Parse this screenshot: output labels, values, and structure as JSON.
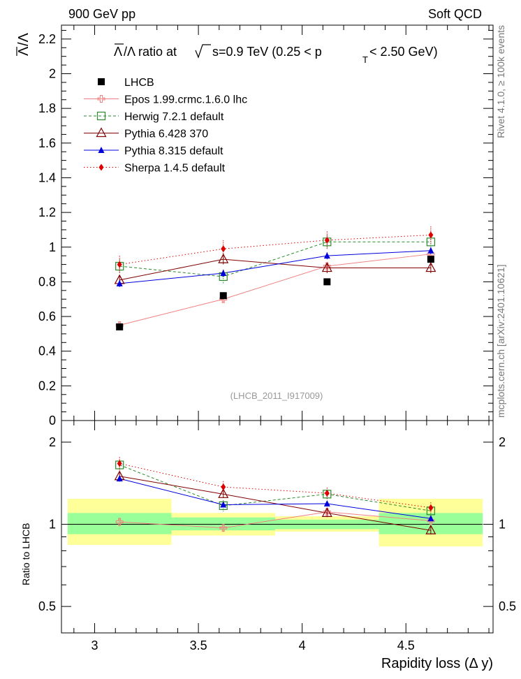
{
  "header": {
    "left": "900 GeV pp",
    "right": "Soft QCD",
    "side_rivet": "Rivet 4.1.0, ≥ 100k events",
    "side_mcplots": "mcplots.cern.ch [arXiv:2401.10621]"
  },
  "chart_data": {
    "type": "line",
    "title_parts": {
      "a": "Λ",
      "b": "/Λ ratio at",
      "c": "s=0.9 TeV (0.25 < p",
      "d": "T",
      "e": " < 2.50 GeV)"
    },
    "ylabel_top_parts": {
      "a": "Λ",
      "b": "/Λ"
    },
    "ylabel_bottom": "Ratio to LHCB",
    "xlabel": "Rapidity loss (Δ y)",
    "watermark": "(LHCB_2011_I917009)",
    "xlim": [
      2.84,
      4.92
    ],
    "ylim_top": [
      0,
      2.28
    ],
    "ylim_bottom_log": [
      0.4,
      2.4
    ],
    "x_ticks": [
      {
        "value": 3,
        "label": "3"
      },
      {
        "value": 3.5,
        "label": "3.5"
      },
      {
        "value": 4,
        "label": "4"
      },
      {
        "value": 4.5,
        "label": "4.5"
      }
    ],
    "y_ticks_top": [
      {
        "value": 0,
        "label": "0"
      },
      {
        "value": 0.2,
        "label": "0.2"
      },
      {
        "value": 0.4,
        "label": "0.4"
      },
      {
        "value": 0.6,
        "label": "0.6"
      },
      {
        "value": 0.8,
        "label": "0.8"
      },
      {
        "value": 1,
        "label": "1"
      },
      {
        "value": 1.2,
        "label": "1.2"
      },
      {
        "value": 1.4,
        "label": "1.4"
      },
      {
        "value": 1.6,
        "label": "1.6"
      },
      {
        "value": 1.8,
        "label": "1.8"
      },
      {
        "value": 2,
        "label": "2"
      },
      {
        "value": 2.2,
        "label": "2.2"
      }
    ],
    "y_ticks_bottom": [
      {
        "value": 0.5,
        "label": "0.5"
      },
      {
        "value": 1,
        "label": "1"
      },
      {
        "value": 2,
        "label": "2"
      }
    ],
    "bins": [
      {
        "lo": 2.87,
        "hi": 3.37
      },
      {
        "lo": 3.37,
        "hi": 3.87
      },
      {
        "lo": 3.87,
        "hi": 4.37
      },
      {
        "lo": 4.37,
        "hi": 4.87
      }
    ],
    "data": {
      "name": "LHCB",
      "x": [
        3.12,
        3.62,
        4.12,
        4.62
      ],
      "y": [
        0.54,
        0.72,
        0.8,
        0.93
      ],
      "ratio_band_inner": [
        [
          0.92,
          1.1
        ],
        [
          0.95,
          1.06
        ],
        [
          0.96,
          1.04
        ],
        [
          0.92,
          1.1
        ]
      ],
      "ratio_band_outer": [
        [
          0.84,
          1.24
        ],
        [
          0.91,
          1.1
        ],
        [
          0.94,
          1.07
        ],
        [
          0.83,
          1.24
        ]
      ]
    },
    "series": [
      {
        "name": "Epos 1.99.crmc.1.6.0 lhc",
        "color": "#f08080",
        "dash": "",
        "marker": "cross-open",
        "x": [
          3.12,
          3.62,
          4.12,
          4.62
        ],
        "y": [
          0.55,
          0.7,
          0.89,
          0.96
        ],
        "yerr": [
          0.02,
          0.02,
          0.02,
          0.02
        ],
        "ratio": [
          1.02,
          0.97,
          1.11,
          1.03
        ]
      },
      {
        "name": "Herwig 7.2.1 default",
        "color": "#2a8a2a",
        "dash": "4,3",
        "marker": "square-open",
        "x": [
          3.12,
          3.62,
          4.12,
          4.62
        ],
        "y": [
          0.89,
          0.83,
          1.03,
          1.03
        ],
        "yerr": [
          0.04,
          0.04,
          0.04,
          0.04
        ],
        "ratio": [
          1.65,
          1.17,
          1.29,
          1.12
        ]
      },
      {
        "name": "Pythia 6.428 370",
        "color": "#800000",
        "dash": "",
        "marker": "triangle-open",
        "x": [
          3.12,
          3.62,
          4.12,
          4.62
        ],
        "y": [
          0.81,
          0.93,
          0.88,
          0.88
        ],
        "yerr": [
          0.03,
          0.03,
          0.03,
          0.03
        ],
        "ratio": [
          1.5,
          1.29,
          1.1,
          0.95
        ]
      },
      {
        "name": "Pythia 8.315 default",
        "color": "#0000dd",
        "dash": "",
        "marker": "triangle-filled",
        "x": [
          3.12,
          3.62,
          4.12,
          4.62
        ],
        "y": [
          0.79,
          0.85,
          0.95,
          0.98
        ],
        "yerr": [
          0.02,
          0.02,
          0.02,
          0.02
        ],
        "ratio": [
          1.47,
          1.18,
          1.19,
          1.05
        ]
      },
      {
        "name": "Sherpa 1.4.5 default",
        "color": "#dd0000",
        "dash": "1.5,3",
        "marker": "diamond-filled",
        "x": [
          3.12,
          3.62,
          4.12,
          4.62
        ],
        "y": [
          0.9,
          0.99,
          1.04,
          1.07
        ],
        "yerr": [
          0.05,
          0.05,
          0.05,
          0.05
        ],
        "ratio": [
          1.67,
          1.37,
          1.3,
          1.15
        ]
      }
    ]
  }
}
